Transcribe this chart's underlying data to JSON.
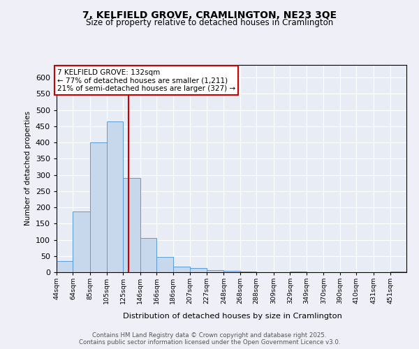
{
  "title_line1": "7, KELFIELD GROVE, CRAMLINGTON, NE23 3QE",
  "title_line2": "Size of property relative to detached houses in Cramlington",
  "xlabel": "Distribution of detached houses by size in Cramlington",
  "ylabel": "Number of detached properties",
  "annotation_title": "7 KELFIELD GROVE: 132sqm",
  "annotation_line2": "← 77% of detached houses are smaller (1,211)",
  "annotation_line3": "21% of semi-detached houses are larger (327) →",
  "property_size": 132,
  "bar_color": "#c8d8ec",
  "bar_edge_color": "#5b9bd5",
  "vline_color": "#cc0000",
  "background_color": "#e8ecf5",
  "grid_color": "#ffffff",
  "bin_edges": [
    44,
    64,
    85,
    105,
    125,
    146,
    166,
    186,
    207,
    227,
    248,
    268,
    288,
    309,
    329,
    349,
    370,
    390,
    410,
    431,
    451,
    471
  ],
  "bin_labels": [
    "44sqm",
    "64sqm",
    "85sqm",
    "105sqm",
    "125sqm",
    "146sqm",
    "166sqm",
    "186sqm",
    "207sqm",
    "227sqm",
    "248sqm",
    "268sqm",
    "288sqm",
    "309sqm",
    "329sqm",
    "349sqm",
    "370sqm",
    "390sqm",
    "410sqm",
    "431sqm",
    "451sqm"
  ],
  "bar_heights": [
    35,
    187,
    401,
    465,
    290,
    105,
    48,
    18,
    12,
    7,
    5,
    3,
    0,
    0,
    3,
    0,
    0,
    1,
    0,
    0,
    3
  ],
  "ylim": [
    0,
    640
  ],
  "yticks": [
    0,
    50,
    100,
    150,
    200,
    250,
    300,
    350,
    400,
    450,
    500,
    550,
    600
  ],
  "footer_line1": "Contains HM Land Registry data © Crown copyright and database right 2025.",
  "footer_line2": "Contains public sector information licensed under the Open Government Licence v3.0."
}
